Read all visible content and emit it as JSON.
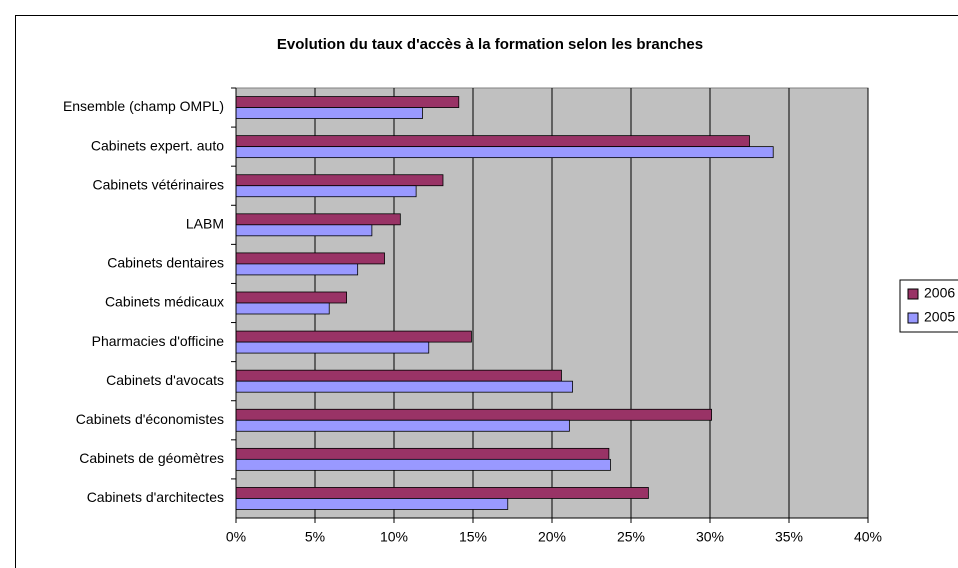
{
  "chart_data": {
    "type": "bar",
    "orientation": "horizontal",
    "title": "Evolution du taux d'accès à la formation selon les branches",
    "categories": [
      "Ensemble (champ OMPL)",
      "Cabinets expert. auto",
      "Cabinets vétérinaires",
      "LABM",
      "Cabinets dentaires",
      "Cabinets médicaux",
      "Pharmacies d'officine",
      "Cabinets d'avocats",
      "Cabinets d'économistes",
      "Cabinets de géomètres",
      "Cabinets d'architectes"
    ],
    "series": [
      {
        "name": "2006",
        "color": "#993366",
        "values": [
          14.1,
          32.5,
          13.1,
          10.4,
          9.4,
          7.0,
          14.9,
          20.6,
          30.1,
          23.6,
          26.1
        ]
      },
      {
        "name": "2005",
        "color": "#9999ff",
        "values": [
          11.8,
          34.0,
          11.4,
          8.6,
          7.7,
          5.9,
          12.2,
          21.3,
          21.1,
          23.7,
          17.2
        ]
      }
    ],
    "xlim": [
      0,
      40
    ],
    "xticks": [
      {
        "value": 0,
        "label": "0%"
      },
      {
        "value": 5,
        "label": "5%"
      },
      {
        "value": 10,
        "label": "10%"
      },
      {
        "value": 15,
        "label": "15%"
      },
      {
        "value": 20,
        "label": "20%"
      },
      {
        "value": 25,
        "label": "25%"
      },
      {
        "value": 30,
        "label": "30%"
      },
      {
        "value": 35,
        "label": "35%"
      },
      {
        "value": 40,
        "label": "40%"
      }
    ],
    "grid": true,
    "legend": "right",
    "plot_background": "#c0c0c0"
  }
}
